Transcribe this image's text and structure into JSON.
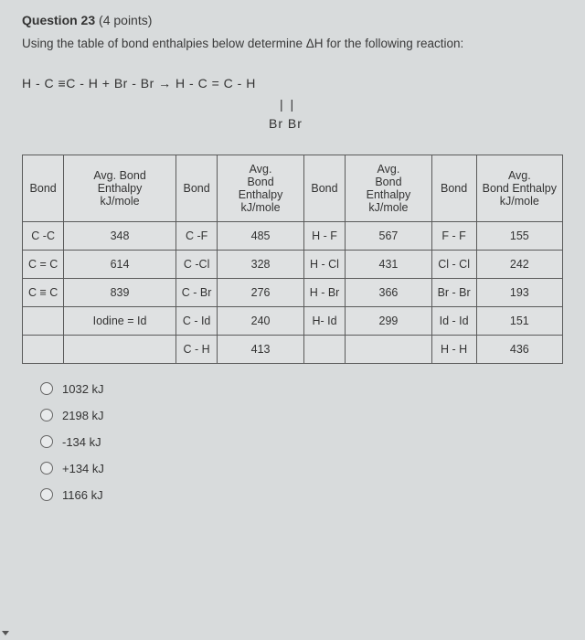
{
  "question": {
    "number": "Question 23",
    "points": "(4 points)",
    "prompt": "Using the table of bond enthalpies below determine ΔH for the following reaction:"
  },
  "reaction": {
    "line1": "H - C ≡C - H   + Br - Br  →   H - C = C - H",
    "sub_bonds": "|    |",
    "sub_atoms": "Br   Br"
  },
  "table": {
    "headers": [
      "Bond",
      "Avg. Bond Enthalpy",
      "Bond",
      "Avg.",
      "Bond",
      "Avg.",
      "Bond",
      "Avg."
    ],
    "subheaders": [
      "",
      "kJ/mole",
      "",
      "Bond Enthalpy",
      "",
      "Bond Enthalpy",
      "",
      "Bond Enthalpy"
    ],
    "units": [
      "",
      "",
      "",
      "kJ/mole",
      "",
      "kJ/mole",
      "",
      "kJ/mole"
    ],
    "rows": [
      [
        "C -C",
        "348",
        "C -F",
        "485",
        "H - F",
        "567",
        "F - F",
        "155"
      ],
      [
        "C = C",
        "614",
        "C -Cl",
        "328",
        "H - Cl",
        "431",
        "Cl - Cl",
        "242"
      ],
      [
        "C ≡ C",
        "839",
        "C - Br",
        "276",
        "H - Br",
        "366",
        "Br - Br",
        "193"
      ],
      [
        "",
        "Iodine = Id",
        "C - Id",
        "240",
        "H- Id",
        "299",
        "Id - Id",
        "151"
      ],
      [
        "",
        "",
        "C - H",
        "413",
        "",
        "",
        "H - H",
        "436"
      ]
    ]
  },
  "options": [
    "1032 kJ",
    "2198 kJ",
    "-134 kJ",
    "+134 kJ",
    "1166 kJ"
  ]
}
